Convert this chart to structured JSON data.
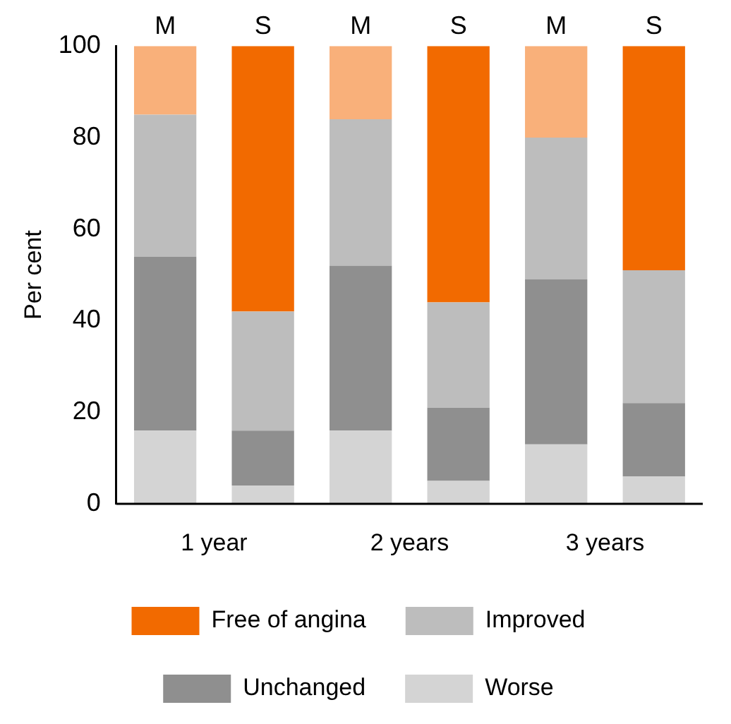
{
  "chart_data": {
    "type": "bar",
    "stacked": true,
    "ylabel": "Per cent",
    "categories": [
      "M",
      "S",
      "M",
      "S",
      "M",
      "S"
    ],
    "series": [
      {
        "name": "Worse",
        "color": "#d4d4d4",
        "values": [
          16,
          4,
          16,
          5,
          13,
          6
        ]
      },
      {
        "name": "Unchanged",
        "color": "#8f8f8f",
        "values": [
          38,
          12,
          36,
          16,
          36,
          16
        ]
      },
      {
        "name": "Improved",
        "color": "#bdbdbd",
        "values": [
          31,
          26,
          32,
          23,
          31,
          29
        ]
      },
      {
        "name": "Free of angina",
        "color": "#f26a00",
        "colors": [
          "#f9b07a",
          "#f26a00",
          "#f9b07a",
          "#f26a00",
          "#f9b07a",
          "#f26a00"
        ],
        "values": [
          15,
          58,
          16,
          56,
          20,
          49
        ]
      }
    ],
    "ylim": [
      0,
      100
    ],
    "yticks": [
      0,
      20,
      40,
      60,
      80,
      100
    ],
    "grid": false,
    "legend": "bottom",
    "annotations": [
      "1 year",
      "2 years",
      "3 years"
    ]
  }
}
